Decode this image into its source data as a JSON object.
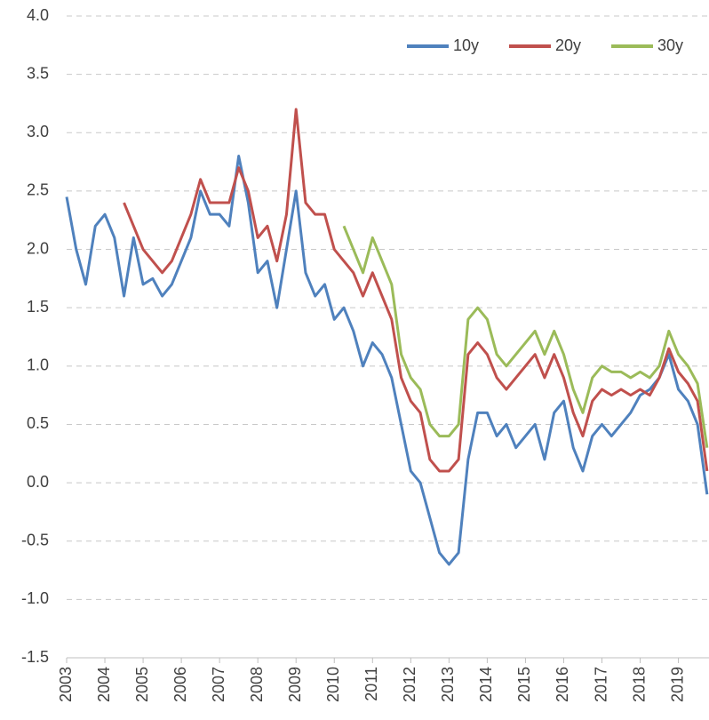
{
  "chart_data": {
    "type": "line",
    "xlim": [
      2003,
      2019.8
    ],
    "xticks": [
      2003,
      2004,
      2005,
      2006,
      2007,
      2008,
      2009,
      2010,
      2011,
      2012,
      2013,
      2014,
      2015,
      2016,
      2017,
      2018,
      2019
    ],
    "ylim": [
      -1.5,
      4.0
    ],
    "yticks": [
      -1.5,
      {
        "value": -1,
        "label": "-1.0"
      },
      -0.5,
      {
        "value": 0,
        "label": "0.0"
      },
      0.5,
      {
        "value": 1,
        "label": "1.0"
      },
      1.5,
      {
        "value": 2,
        "label": "2.0"
      },
      2.5,
      {
        "value": 3,
        "label": "3.0"
      },
      3.5,
      {
        "value": 4,
        "label": "4.0"
      }
    ],
    "grid": true,
    "legend": "top-right",
    "series": [
      {
        "name": "10y",
        "color": "#4f81bd",
        "x": [
          2003,
          2003.25,
          2003.5,
          2003.75,
          2004,
          2004.25,
          2004.5,
          2004.75,
          2005,
          2005.25,
          2005.5,
          2005.75,
          2006,
          2006.25,
          2006.5,
          2006.75,
          2007,
          2007.25,
          2007.5,
          2007.75,
          2008,
          2008.25,
          2008.5,
          2008.75,
          2009,
          2009.25,
          2009.5,
          2009.75,
          2010,
          2010.25,
          2010.5,
          2010.75,
          2011,
          2011.25,
          2011.5,
          2011.75,
          2012,
          2012.25,
          2012.5,
          2012.75,
          2013,
          2013.25,
          2013.5,
          2013.75,
          2014,
          2014.25,
          2014.5,
          2014.75,
          2015,
          2015.25,
          2015.5,
          2015.75,
          2016,
          2016.25,
          2016.5,
          2016.75,
          2017,
          2017.25,
          2017.5,
          2017.75,
          2018,
          2018.25,
          2018.5,
          2018.75,
          2019,
          2019.25,
          2019.5,
          2019.75
        ],
        "values": [
          2.45,
          2.0,
          1.7,
          2.2,
          2.3,
          2.1,
          1.6,
          2.1,
          1.7,
          1.75,
          1.6,
          1.7,
          1.9,
          2.1,
          2.5,
          2.3,
          2.3,
          2.2,
          2.8,
          2.4,
          1.8,
          1.9,
          1.5,
          2.0,
          2.5,
          1.8,
          1.6,
          1.7,
          1.4,
          1.5,
          1.3,
          1.0,
          1.2,
          1.1,
          0.9,
          0.5,
          0.1,
          0.0,
          -0.3,
          -0.6,
          -0.7,
          -0.6,
          0.2,
          0.6,
          0.6,
          0.4,
          0.5,
          0.3,
          0.4,
          0.5,
          0.2,
          0.6,
          0.7,
          0.3,
          0.1,
          0.4,
          0.5,
          0.4,
          0.5,
          0.6,
          0.75,
          0.8,
          0.9,
          1.1,
          0.8,
          0.7,
          0.5,
          -0.1
        ]
      },
      {
        "name": "20y",
        "color": "#c0504d",
        "x": [
          2004.5,
          2004.75,
          2005,
          2005.25,
          2005.5,
          2005.75,
          2006,
          2006.25,
          2006.5,
          2006.75,
          2007,
          2007.25,
          2007.5,
          2007.75,
          2008,
          2008.25,
          2008.5,
          2008.75,
          2009,
          2009.25,
          2009.5,
          2009.75,
          2010,
          2010.25,
          2010.5,
          2010.75,
          2011,
          2011.25,
          2011.5,
          2011.75,
          2012,
          2012.25,
          2012.5,
          2012.75,
          2013,
          2013.25,
          2013.5,
          2013.75,
          2014,
          2014.25,
          2014.5,
          2014.75,
          2015,
          2015.25,
          2015.5,
          2015.75,
          2016,
          2016.25,
          2016.5,
          2016.75,
          2017,
          2017.25,
          2017.5,
          2017.75,
          2018,
          2018.25,
          2018.5,
          2018.75,
          2019,
          2019.25,
          2019.5,
          2019.75
        ],
        "values": [
          2.4,
          2.2,
          2.0,
          1.9,
          1.8,
          1.9,
          2.1,
          2.3,
          2.6,
          2.4,
          2.4,
          2.4,
          2.7,
          2.5,
          2.1,
          2.2,
          1.9,
          2.3,
          3.2,
          2.4,
          2.3,
          2.3,
          2.0,
          1.9,
          1.8,
          1.6,
          1.8,
          1.6,
          1.4,
          0.9,
          0.7,
          0.6,
          0.2,
          0.1,
          0.1,
          0.2,
          1.1,
          1.2,
          1.1,
          0.9,
          0.8,
          0.9,
          1.0,
          1.1,
          0.9,
          1.1,
          0.9,
          0.6,
          0.4,
          0.7,
          0.8,
          0.75,
          0.8,
          0.75,
          0.8,
          0.75,
          0.9,
          1.15,
          0.95,
          0.85,
          0.7,
          0.1
        ]
      },
      {
        "name": "30y",
        "color": "#9bbb59",
        "x": [
          2010.25,
          2010.5,
          2010.75,
          2011,
          2011.25,
          2011.5,
          2011.75,
          2012,
          2012.25,
          2012.5,
          2012.75,
          2013,
          2013.25,
          2013.5,
          2013.75,
          2014,
          2014.25,
          2014.5,
          2014.75,
          2015,
          2015.25,
          2015.5,
          2015.75,
          2016,
          2016.25,
          2016.5,
          2016.75,
          2017,
          2017.25,
          2017.5,
          2017.75,
          2018,
          2018.25,
          2018.5,
          2018.75,
          2019,
          2019.25,
          2019.5,
          2019.75
        ],
        "values": [
          2.2,
          2.0,
          1.8,
          2.1,
          1.9,
          1.7,
          1.1,
          0.9,
          0.8,
          0.5,
          0.4,
          0.4,
          0.5,
          1.4,
          1.5,
          1.4,
          1.1,
          1.0,
          1.1,
          1.2,
          1.3,
          1.1,
          1.3,
          1.1,
          0.8,
          0.6,
          0.9,
          1.0,
          0.95,
          0.95,
          0.9,
          0.95,
          0.9,
          1.0,
          1.3,
          1.1,
          1.0,
          0.85,
          0.3
        ]
      }
    ]
  }
}
